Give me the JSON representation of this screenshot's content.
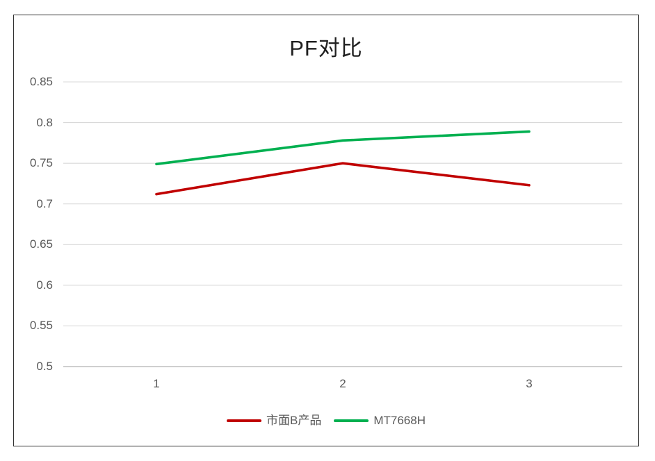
{
  "chart_data": {
    "type": "line",
    "title": "PF对比",
    "categories": [
      "1",
      "2",
      "3"
    ],
    "series": [
      {
        "name": "市面B产品",
        "color": "#C00000",
        "values": [
          0.712,
          0.75,
          0.723
        ]
      },
      {
        "name": "MT7668H",
        "color": "#00B050",
        "values": [
          0.749,
          0.778,
          0.789
        ]
      }
    ],
    "xlabel": "",
    "ylabel": "",
    "ylim": [
      0.5,
      0.85
    ],
    "ytick_step": 0.05,
    "yticks": [
      "0.85",
      "0.8",
      "0.75",
      "0.7",
      "0.65",
      "0.6",
      "0.55",
      "0.5"
    ],
    "grid": true,
    "legend_position": "bottom",
    "colors": {
      "gridline": "#D9D9D9",
      "axis_line": "#BFBFBF",
      "tick_label": "#595959",
      "title": "#1f1f1f"
    }
  }
}
